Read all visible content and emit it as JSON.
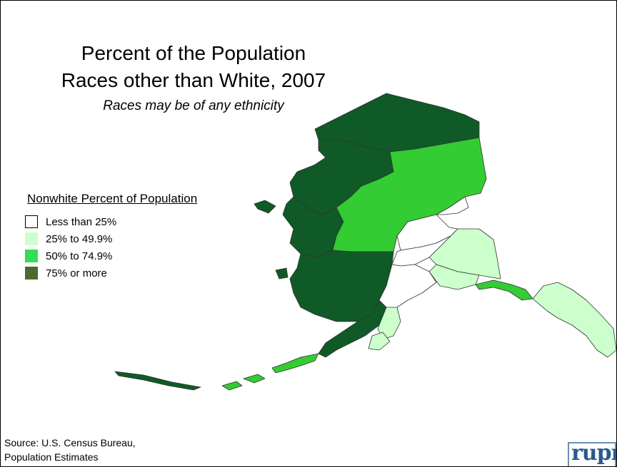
{
  "title_line1": "Percent of the Population",
  "title_line2": "Races other than White, 2007",
  "subtitle": "Races may be of any ethnicity",
  "legend": {
    "title": "Nonwhite Percent of Population",
    "items": [
      {
        "label": "Less than 25%",
        "color": "#ffffff"
      },
      {
        "label": "25% to 49.9%",
        "color": "#ccffcc"
      },
      {
        "label": "50% to 74.9%",
        "color": "#33dd55"
      },
      {
        "label": "75% or more",
        "color": "#4a6b2e"
      }
    ]
  },
  "map_colors": {
    "dark": "#0f5a26",
    "bright": "#33cc33",
    "light": "#ccffcc",
    "white": "#ffffff"
  },
  "source_line1": "Source: U.S. Census Bureau,",
  "source_line2": "Population Estimates",
  "logo_text": "rupri"
}
